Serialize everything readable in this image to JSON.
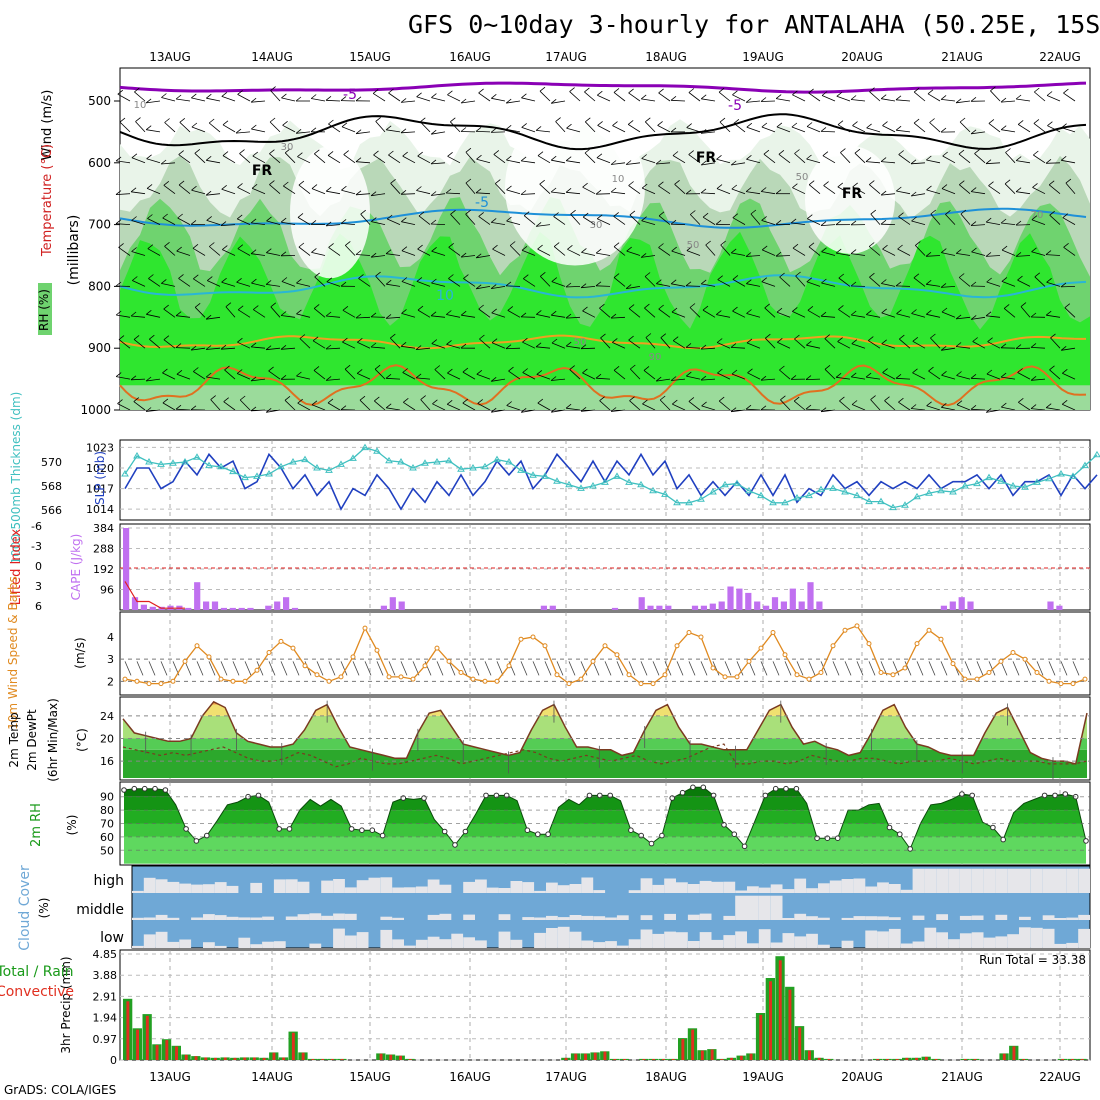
{
  "title": "GFS 0~10day 3-hourly for ANTALAHA (50.25E, 15S)",
  "credit": "GrADS: COLA/IGES",
  "dates": [
    "13AUG",
    "14AUG",
    "15AUG",
    "16AUG",
    "17AUG",
    "18AUG",
    "19AUG",
    "20AUG",
    "21AUG",
    "22AUG"
  ],
  "colors": {
    "rh_light": "#e9f4e9",
    "rh_mid": "#b9d8b8",
    "rh_green": "#6fd36f",
    "rh_bright": "#2fe62f",
    "temp_purple": "#8a00b5",
    "temp_blue": "#1e90d8",
    "temp_cyan": "#29b6d6",
    "temp_orange": "#f0a020",
    "slp": "#2040c0",
    "thick": "#40c0c0",
    "cape": "#c070f0",
    "li": "#e02020",
    "wind_orange": "#e08a20",
    "cloud_blue": "#6fa8d6",
    "precip_green": "#22a022",
    "precip_red": "#e03020"
  },
  "panels": {
    "upper_air": {
      "labels": [
        "Wind (m/s)",
        "Temperature (°C)",
        "RH (%)",
        "(millibars)"
      ],
      "yticks": [
        "500",
        "600",
        "700",
        "800",
        "900",
        "1000"
      ],
      "contour_labels": [
        "-5",
        "-5",
        "FR",
        "FR",
        "FR",
        "-5",
        "10",
        "30",
        "10",
        "50",
        "70",
        "90",
        "50",
        "10",
        "30",
        "50"
      ]
    },
    "slp": {
      "labels": [
        "1000-500mb Thickness (dm)",
        "SLP (mb)"
      ],
      "left_ticks": [
        "570",
        "568",
        "566"
      ],
      "right_ticks": [
        "1023",
        "1020",
        "1017",
        "1014"
      ]
    },
    "cape": {
      "labels": [
        "Lifted Index",
        "CAPE (J/kg)"
      ],
      "left_ticks": [
        "-6",
        "-3",
        "0",
        "3",
        "6"
      ],
      "right_ticks": [
        "384",
        "288",
        "192",
        "96"
      ]
    },
    "wind10": {
      "labels": [
        "10m Wind Speed & Barbs",
        "(m/s)"
      ],
      "ticks": [
        "4",
        "3",
        "2"
      ]
    },
    "temp2m": {
      "labels": [
        "2m Temp",
        "2m DewPt",
        "(6hr Min/Max)",
        "(°C)"
      ],
      "ticks": [
        "24",
        "20",
        "16"
      ]
    },
    "rh2m": {
      "labels": [
        "2m RH",
        "(%)"
      ],
      "ticks": [
        "90",
        "80",
        "70",
        "60",
        "50"
      ]
    },
    "cloud": {
      "labels": [
        "Cloud Cover",
        "(%)"
      ],
      "levels": [
        "high",
        "middle",
        "low"
      ]
    },
    "precip": {
      "labels": [
        "3hr Precip (mm)",
        "Total / Rain",
        "Convective"
      ],
      "ticks": [
        "4.85",
        "3.88",
        "2.91",
        "1.94",
        "0.97",
        "0"
      ],
      "run_total": "Run Total = 33.38"
    }
  },
  "chart_data": [
    {
      "type": "line",
      "title": "1000-500mb Thickness / SLP",
      "series": [
        {
          "name": "SLP (mb)",
          "axis": "right",
          "values": [
            1017,
            1020,
            1020,
            1017,
            1018,
            1021,
            1019,
            1022,
            1020,
            1021,
            1017,
            1018,
            1022,
            1020,
            1017,
            1019,
            1016,
            1018,
            1014,
            1017,
            1016,
            1019,
            1017,
            1014,
            1017,
            1015,
            1018,
            1016,
            1019,
            1016,
            1018,
            1021,
            1019,
            1021,
            1017,
            1019,
            1022,
            1020,
            1018,
            1021,
            1018,
            1021,
            1019,
            1022,
            1019,
            1021,
            1017,
            1019,
            1016,
            1018,
            1016,
            1018,
            1016,
            1019,
            1016,
            1019,
            1015,
            1017,
            1016,
            1019,
            1017,
            1018,
            1016,
            1018,
            1017,
            1018,
            1017,
            1019,
            1017,
            1018,
            1018,
            1019,
            1017,
            1019,
            1016,
            1018,
            1018,
            1019,
            1016,
            1019,
            1017,
            1019
          ]
        },
        {
          "name": "1000-500mb Thickness (dm)",
          "axis": "left",
          "values": [
            569.0,
            570.5,
            570.0,
            569.8,
            569.9,
            570.0,
            570.4,
            569.7,
            569.6,
            569.2,
            568.7,
            568.8,
            569.0,
            569.6,
            570.0,
            570.2,
            569.5,
            569.3,
            569.8,
            570.3,
            571.2,
            570.9,
            570.1,
            570.0,
            569.5,
            569.9,
            570.0,
            570.1,
            569.4,
            569.5,
            569.6,
            570.2,
            570.0,
            569.3,
            568.9,
            568.8,
            568.4,
            568.1,
            567.8,
            568.0,
            568.3,
            568.8,
            568.3,
            568.1,
            567.6,
            567.3,
            566.6,
            566.6,
            566.9,
            567.5,
            568.1,
            568.2,
            567.6,
            567.2,
            566.6,
            566.6,
            567.0,
            567.2,
            567.7,
            567.8,
            567.5,
            567.2,
            566.7,
            566.7,
            566.2,
            566.4,
            567.1,
            567.4,
            567.6,
            567.5,
            568.0,
            568.2,
            568.7,
            568.4,
            568.0,
            567.9,
            568.3,
            568.6,
            569.0,
            568.8,
            569.7,
            570.6
          ]
        }
      ]
    },
    {
      "type": "bar",
      "title": "CAPE / Lifted Index",
      "series": [
        {
          "name": "CAPE (J/kg)",
          "values": [
            384,
            60,
            25,
            15,
            15,
            20,
            20,
            10,
            130,
            40,
            40,
            10,
            10,
            10,
            10,
            0,
            20,
            40,
            60,
            10,
            0,
            0,
            0,
            0,
            0,
            0,
            0,
            0,
            0,
            20,
            60,
            40,
            0,
            0,
            0,
            0,
            0,
            0,
            0,
            0,
            0,
            0,
            0,
            0,
            0,
            0,
            0,
            20,
            20,
            0,
            0,
            0,
            0,
            0,
            0,
            10,
            0,
            0,
            60,
            20,
            20,
            20,
            0,
            0,
            20,
            20,
            30,
            40,
            110,
            100,
            80,
            40,
            20,
            60,
            40,
            100,
            40,
            130,
            40,
            0,
            0,
            0,
            0,
            0,
            0,
            0,
            0,
            0,
            0,
            0,
            0,
            0,
            20,
            40,
            60,
            40,
            0,
            0,
            0,
            0,
            0,
            0,
            0,
            0,
            40,
            20,
            0,
            0
          ]
        },
        {
          "name": "Lifted Index",
          "values": [
            2,
            5,
            5,
            6,
            6,
            6
          ]
        }
      ]
    },
    {
      "type": "line",
      "title": "10m Wind Speed",
      "series": [
        {
          "name": "10m Wind Speed (m/s)",
          "values": [
            2.1,
            2.0,
            1.9,
            1.9,
            2.0,
            2.9,
            3.6,
            3.1,
            2.1,
            2.0,
            2.0,
            2.5,
            3.3,
            3.8,
            3.5,
            2.7,
            2.3,
            2.0,
            2.2,
            3.1,
            4.4,
            3.4,
            2.2,
            2.2,
            2.1,
            2.7,
            3.5,
            2.9,
            2.4,
            2.1,
            2.0,
            2.0,
            2.7,
            3.9,
            4.0,
            3.6,
            2.3,
            1.9,
            2.1,
            2.9,
            3.6,
            3.2,
            2.3,
            1.9,
            1.9,
            2.3,
            3.6,
            4.2,
            4.0,
            2.6,
            2.2,
            2.2,
            2.9,
            3.5,
            4.2,
            3.2,
            2.3,
            2.1,
            2.4,
            3.6,
            4.3,
            4.5,
            3.7,
            2.4,
            2.3,
            2.6,
            3.7,
            4.3,
            3.9,
            2.8,
            2.1,
            2.1,
            2.4,
            2.9,
            3.3,
            3.0,
            2.4,
            2.0,
            1.9,
            1.9,
            2.1
          ]
        }
      ]
    },
    {
      "type": "area",
      "title": "2m Temp / DewPt",
      "series": [
        {
          "name": "2m Temp (°C)",
          "values": [
            23.5,
            21.0,
            20.5,
            20.0,
            19.5,
            19.5,
            20.0,
            24.0,
            26.5,
            25.5,
            21.0,
            19.5,
            19.0,
            18.5,
            18.5,
            19.0,
            21.5,
            25.0,
            26.0,
            22.0,
            18.5,
            18.0,
            17.5,
            17.0,
            16.5,
            16.5,
            21.0,
            24.5,
            25.0,
            22.0,
            19.0,
            18.5,
            18.0,
            17.5,
            17.0,
            17.5,
            21.5,
            25.0,
            26.0,
            22.0,
            18.5,
            18.5,
            18.0,
            18.0,
            17.0,
            17.5,
            21.5,
            25.0,
            26.0,
            22.0,
            19.0,
            19.0,
            18.5,
            18.0,
            18.0,
            18.0,
            21.5,
            25.0,
            26.0,
            22.0,
            19.0,
            19.5,
            18.5,
            18.0,
            17.0,
            17.5,
            21.0,
            25.0,
            26.0,
            22.0,
            19.0,
            18.5,
            17.5,
            17.0,
            17.0,
            17.0,
            21.0,
            24.5,
            25.5,
            21.5,
            17.5,
            16.5,
            16.0,
            16.0,
            15.5,
            24.5
          ]
        },
        {
          "name": "2m DewPt (°C)",
          "values": [
            18.5,
            18.0,
            17.5,
            17.0,
            17.5,
            17.0,
            17.5,
            18.0,
            18.5,
            17.5,
            16.5,
            16.0,
            16.0,
            16.5,
            17.5,
            17.0,
            16.0,
            15.0,
            15.5,
            16.5,
            16.0,
            15.5,
            15.5,
            16.0,
            16.5,
            17.0,
            16.5,
            15.5,
            16.0,
            16.5,
            17.0,
            17.5,
            18.0,
            17.5,
            16.5,
            16.0,
            16.5,
            17.0,
            16.5,
            16.0,
            16.5,
            17.0,
            16.0,
            15.5,
            16.0,
            16.5,
            17.5,
            18.5,
            19.0,
            15.5,
            15.5,
            16.0,
            16.0,
            15.5,
            16.0,
            17.0,
            16.5,
            16.0,
            16.0,
            16.5,
            16.5,
            16.0,
            15.5,
            16.0,
            16.0,
            16.0,
            16.5,
            16.0,
            15.5,
            16.0,
            16.5,
            16.0,
            16.0,
            16.0,
            15.5,
            15.5,
            15.5,
            16.0
          ]
        }
      ]
    },
    {
      "type": "area",
      "title": "2m RH",
      "series": [
        {
          "name": "2m RH (%)",
          "values": [
            95,
            96,
            96,
            96,
            95,
            84,
            66,
            57,
            61,
            72,
            84,
            86,
            90,
            91,
            86,
            66,
            66,
            80,
            88,
            83,
            88,
            83,
            66,
            65,
            65,
            61,
            86,
            89,
            88,
            89,
            73,
            64,
            54,
            64,
            77,
            91,
            91,
            91,
            87,
            65,
            62,
            62,
            82,
            88,
            84,
            91,
            91,
            91,
            87,
            65,
            61,
            55,
            61,
            89,
            93,
            97,
            97,
            91,
            69,
            62,
            53,
            72,
            91,
            96,
            96,
            96,
            85,
            59,
            59,
            59,
            80,
            80,
            84,
            85,
            67,
            62,
            51,
            70,
            84,
            85,
            88,
            92,
            91,
            71,
            67,
            58,
            78,
            85,
            88,
            91,
            91,
            92,
            90,
            57
          ]
        }
      ]
    },
    {
      "type": "bar",
      "title": "3hr Precip (mm)",
      "ylim": [
        0,
        4.85
      ],
      "series": [
        {
          "name": "Total / Rain",
          "values": [
            2.8,
            1.45,
            2.1,
            0.72,
            0.95,
            0.65,
            0.25,
            0.18,
            0.12,
            0.1,
            0.12,
            0.1,
            0.12,
            0.12,
            0.1,
            0.35,
            0.12,
            1.3,
            0.35,
            0.05,
            0.05,
            0.05,
            0.05,
            0.0,
            0.0,
            0.0,
            0.3,
            0.25,
            0.2,
            0.05,
            0.0,
            0.0,
            0.0,
            0.0,
            0.0,
            0.0,
            0.0,
            0.0,
            0.0,
            0.0,
            0.0,
            0.0,
            0.0,
            0.0,
            0.0,
            0.1,
            0.3,
            0.3,
            0.35,
            0.4,
            0.05,
            0.05,
            0.0,
            0.05,
            0.05,
            0.05,
            0.05,
            1.0,
            1.45,
            0.45,
            0.5,
            0.05,
            0.1,
            0.2,
            0.3,
            2.15,
            3.75,
            4.75,
            3.35,
            1.55,
            0.45,
            0.1,
            0.05,
            0.0,
            0.0,
            0.0,
            0.0,
            0.05,
            0.05,
            0.05,
            0.1,
            0.1,
            0.15,
            0.05,
            0.0,
            0.0,
            0.05,
            0.05,
            0.0,
            0.0,
            0.3,
            0.65,
            0.05,
            0.0,
            0.0,
            0.0,
            0.05,
            0.05,
            0.05
          ]
        }
      ]
    }
  ]
}
